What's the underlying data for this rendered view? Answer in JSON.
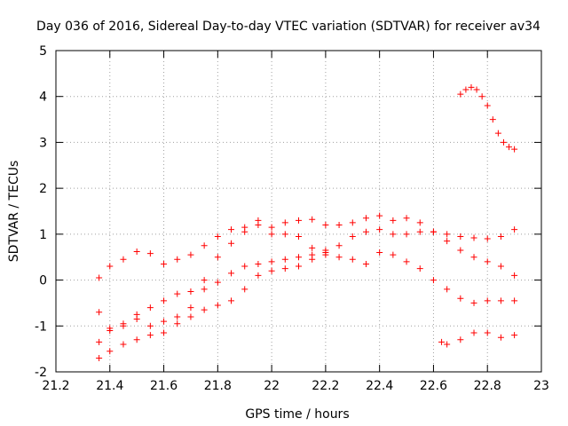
{
  "chart_data": {
    "type": "scatter",
    "title": "Day 036 of 2016, Sidereal Day-to-day VTEC variation (SDTVAR) for receiver av34",
    "xlabel": "GPS time / hours",
    "ylabel": "SDTVAR / TECUs",
    "xlim": [
      21.2,
      23
    ],
    "ylim": [
      -2,
      5
    ],
    "xticks": [
      "21.2",
      "21.4",
      "21.6",
      "21.8",
      "22",
      "22.2",
      "22.4",
      "22.6",
      "22.8",
      "23"
    ],
    "yticks": [
      "-2",
      "-1",
      "0",
      "1",
      "2",
      "3",
      "4",
      "5"
    ],
    "grid": true,
    "marker": "+",
    "color": "#ff0000",
    "series": [
      {
        "name": "s1",
        "x": [
          21.36,
          21.4,
          21.45,
          21.5,
          21.55,
          21.6,
          21.65,
          21.7,
          21.75,
          21.8,
          21.85,
          21.9,
          21.95,
          22.0,
          22.05,
          22.1,
          22.15,
          22.2,
          22.25,
          22.3,
          22.35,
          22.4,
          22.45,
          22.5,
          22.55,
          22.6,
          22.65,
          22.7,
          22.75,
          22.8,
          22.85,
          22.9
        ],
        "y": [
          0.05,
          0.3,
          0.45,
          0.62,
          0.58,
          0.35,
          0.45,
          0.55,
          0.75,
          0.95,
          1.1,
          1.15,
          1.2,
          1.15,
          1.25,
          1.3,
          1.32,
          1.2,
          1.2,
          1.25,
          1.35,
          1.4,
          1.3,
          1.35,
          1.25,
          1.05,
          1.0,
          0.95,
          0.92,
          0.9,
          0.95,
          1.1
        ]
      },
      {
        "name": "s2",
        "x": [
          21.36,
          21.4,
          21.45,
          21.5,
          21.55,
          21.6,
          21.65,
          21.7,
          21.75,
          21.8,
          21.85,
          21.9,
          21.95,
          22.0,
          22.05,
          22.1,
          22.15,
          22.2,
          22.25,
          22.3,
          22.35,
          22.4,
          22.45,
          22.5,
          22.55,
          22.6,
          22.65,
          22.7,
          22.75,
          22.8,
          22.85,
          22.9
        ],
        "y": [
          -0.7,
          -1.05,
          -0.95,
          -0.75,
          -0.6,
          -0.45,
          -0.3,
          -0.25,
          0.0,
          0.5,
          0.8,
          1.05,
          1.3,
          1.0,
          1.0,
          0.95,
          0.7,
          0.55,
          0.5,
          0.45,
          0.35,
          0.6,
          0.55,
          0.4,
          0.25,
          0.0,
          -0.2,
          -0.4,
          -0.5,
          -0.45,
          -0.45,
          -0.45
        ]
      },
      {
        "name": "s3",
        "x": [
          21.36,
          21.4,
          21.45,
          21.5,
          21.55,
          21.6,
          21.65,
          21.7,
          21.75,
          21.8,
          21.85,
          21.9,
          21.95,
          22.0,
          22.05,
          22.1,
          22.15,
          22.2,
          22.25,
          22.3,
          22.35,
          22.4,
          22.45,
          22.5,
          22.55,
          22.6,
          22.65,
          22.7,
          22.75,
          22.8,
          22.85,
          22.9
        ],
        "y": [
          -1.35,
          -1.1,
          -1.0,
          -0.85,
          -1.0,
          -0.9,
          -0.8,
          -0.6,
          -0.2,
          -0.05,
          0.15,
          0.3,
          0.35,
          0.4,
          0.45,
          0.5,
          0.55,
          0.6,
          0.75,
          0.95,
          1.05,
          1.1,
          1.0,
          1.0,
          1.05,
          1.05,
          0.85,
          0.65,
          0.5,
          0.4,
          0.3,
          0.1
        ]
      },
      {
        "name": "s4",
        "x": [
          21.36,
          21.4,
          21.45,
          21.5,
          21.55,
          21.6,
          21.65,
          21.7,
          21.75,
          21.8,
          21.85,
          21.9,
          21.95,
          22.0,
          22.05,
          22.1,
          22.15,
          22.2
        ],
        "y": [
          -1.7,
          -1.55,
          -1.4,
          -1.3,
          -1.2,
          -1.15,
          -0.95,
          -0.8,
          -0.65,
          -0.55,
          -0.45,
          -0.2,
          0.1,
          0.2,
          0.25,
          0.3,
          0.45,
          0.65
        ]
      },
      {
        "name": "s5",
        "x": [
          22.63,
          22.65,
          22.7,
          22.75,
          22.8,
          22.85,
          22.9
        ],
        "y": [
          -1.35,
          -1.4,
          -1.3,
          -1.15,
          -1.15,
          -1.25,
          -1.2
        ]
      },
      {
        "name": "s6",
        "x": [
          22.7,
          22.72,
          22.74,
          22.76,
          22.78,
          22.8,
          22.82,
          22.84,
          22.86,
          22.88,
          22.9
        ],
        "y": [
          4.05,
          4.15,
          4.2,
          4.15,
          4.0,
          3.8,
          3.5,
          3.2,
          3.0,
          2.9,
          2.85
        ]
      }
    ]
  }
}
